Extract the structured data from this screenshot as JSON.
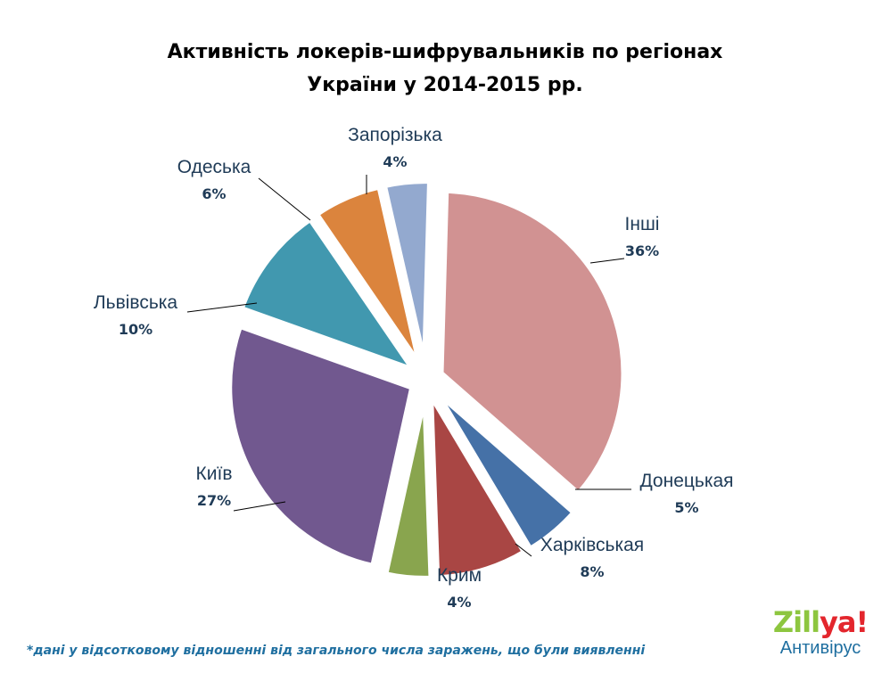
{
  "chart_data": {
    "type": "pie",
    "title_lines": [
      "Активність локерів-шифрувальників по регіонах",
      "України у 2014-2015 рр."
    ],
    "slices": [
      {
        "name": "Інші",
        "value": 36,
        "label": "36%",
        "color": "#d19292"
      },
      {
        "name": "Донецькая",
        "value": 5,
        "label": "5%",
        "color": "#4571a7"
      },
      {
        "name": "Харківськая",
        "value": 8,
        "label": "8%",
        "color": "#a94644"
      },
      {
        "name": "Крим",
        "value": 4,
        "label": "4%",
        "color": "#89a54e"
      },
      {
        "name": "Київ",
        "value": 27,
        "label": "27%",
        "color": "#71588f"
      },
      {
        "name": "Львівська",
        "value": 10,
        "label": "10%",
        "color": "#4198af"
      },
      {
        "name": "Одеська",
        "value": 6,
        "label": "6%",
        "color": "#db843d"
      },
      {
        "name": "Запорізька",
        "value": 4,
        "label": "4%",
        "color": "#93a9cf"
      }
    ],
    "legend": "none",
    "exploded": true
  },
  "footnote": "*дані у відсотковому відношенні від загального числа заражень, що були виявленні",
  "logo": {
    "brand_main": "Zill",
    "brand_accent": "ya!",
    "subtitle": "Антивірус",
    "colors": {
      "main": "#8dc63f",
      "accent": "#e3262d",
      "subtitle": "#1f6fa0"
    }
  }
}
